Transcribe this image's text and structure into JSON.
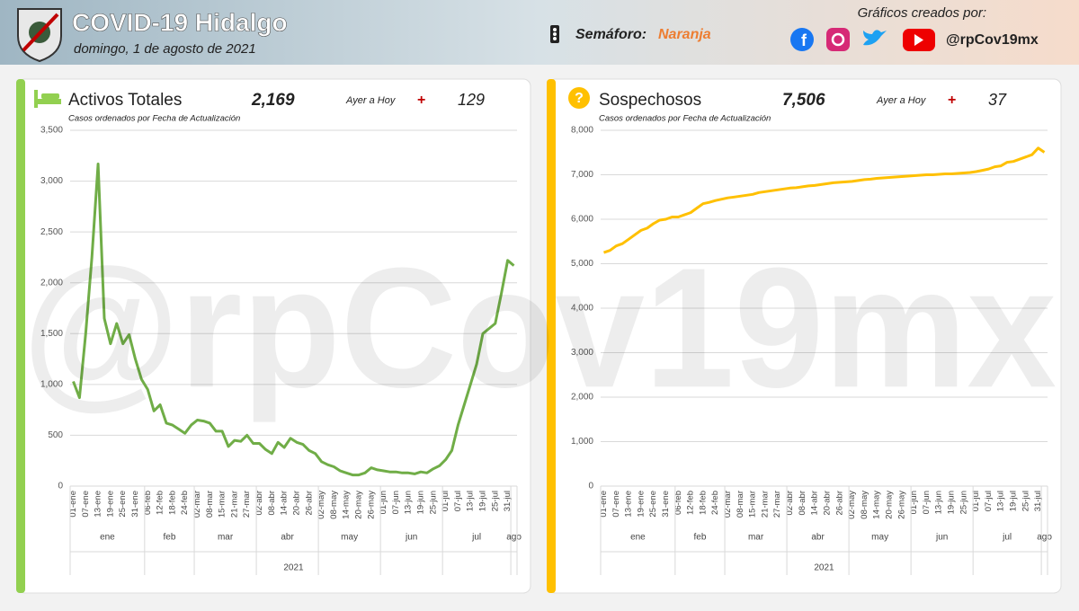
{
  "header": {
    "title": "COVID-19 Hidalgo",
    "date": "domingo, 1 de agosto de 2021",
    "semaforo_label": "Semáforo:",
    "semaforo": "Naranja",
    "credits": "Gráficos creados por:",
    "handle": "@rpCov19mx"
  },
  "watermark": "@rpCov19mx",
  "chart_data": [
    {
      "type": "line",
      "title": "Activos Totales",
      "subtitle": "Casos ordenados por Fecha de Actualización",
      "total": {
        "value": 2169,
        "label": "2,169"
      },
      "change_label": "Ayer a Hoy",
      "change_sign": "+",
      "change": 129,
      "color": "#70ad47",
      "accent": "#92d050",
      "grid": true,
      "categories": [
        "01-ene",
        null,
        "07-ene",
        null,
        "13-ene",
        null,
        "19-ene",
        null,
        "25-ene",
        null,
        "31-ene",
        null,
        "06-feb",
        null,
        "12-feb",
        null,
        "18-feb",
        null,
        "24-feb",
        null,
        "02-mar",
        null,
        "08-mar",
        null,
        "15-mar",
        null,
        "21-mar",
        null,
        "27-mar",
        null,
        "02-abr",
        null,
        "08-abr",
        null,
        "14-abr",
        null,
        "20-abr",
        null,
        "26-abr",
        null,
        "02-may",
        null,
        "08-may",
        null,
        "14-may",
        null,
        "20-may",
        null,
        "26-may",
        null,
        "01-jun",
        null,
        "07-jun",
        null,
        "13-jun",
        null,
        "19-jun",
        null,
        "25-jun",
        null,
        "01-jul",
        null,
        "07-jul",
        null,
        "13-jul",
        null,
        "19-jul",
        null,
        "25-jul",
        null,
        "31-jul",
        null
      ],
      "values": [
        1030,
        870,
        1500,
        2250,
        3169,
        1650,
        1400,
        1600,
        1400,
        1490,
        1250,
        1050,
        950,
        740,
        800,
        620,
        600,
        560,
        520,
        600,
        650,
        640,
        620,
        540,
        540,
        390,
        450,
        440,
        500,
        420,
        420,
        360,
        320,
        430,
        380,
        470,
        430,
        410,
        350,
        320,
        240,
        210,
        190,
        150,
        130,
        110,
        110,
        130,
        180,
        160,
        150,
        140,
        140,
        130,
        130,
        120,
        140,
        130,
        170,
        200,
        260,
        350,
        600,
        800,
        1000,
        1200,
        1500,
        1550,
        1600,
        1900,
        2220,
        2169
      ],
      "groups": [
        "ene",
        "feb",
        "mar",
        "abr",
        "may",
        "jun",
        "jul",
        "ago"
      ],
      "group_title": "2021",
      "ylim": [
        0,
        3500
      ],
      "yticks": [
        0,
        500,
        {
          "value": 1000,
          "label": "1,000"
        },
        {
          "value": 1500,
          "label": "1,500"
        },
        {
          "value": 2000,
          "label": "2,000"
        },
        {
          "value": 2500,
          "label": "2,500"
        },
        {
          "value": 3000,
          "label": "3,000"
        },
        {
          "value": 3500,
          "label": "3,500"
        }
      ]
    },
    {
      "type": "line",
      "title": "Sospechosos",
      "subtitle": "Casos ordenados por Fecha de Actualización",
      "total": {
        "value": 7506,
        "label": "7,506"
      },
      "change_label": "Ayer a Hoy",
      "change_sign": "+",
      "change": 37,
      "color": "#ffc000",
      "accent": "#ffc000",
      "grid": true,
      "categories": [
        "01-ene",
        null,
        "07-ene",
        null,
        "13-ene",
        null,
        "19-ene",
        null,
        "25-ene",
        null,
        "31-ene",
        null,
        "06-feb",
        null,
        "12-feb",
        null,
        "18-feb",
        null,
        "24-feb",
        null,
        "02-mar",
        null,
        "08-mar",
        null,
        "15-mar",
        null,
        "21-mar",
        null,
        "27-mar",
        null,
        "02-abr",
        null,
        "08-abr",
        null,
        "14-abr",
        null,
        "20-abr",
        null,
        "26-abr",
        null,
        "02-may",
        null,
        "08-may",
        null,
        "14-may",
        null,
        "20-may",
        null,
        "26-may",
        null,
        "01-jun",
        null,
        "07-jun",
        null,
        "13-jun",
        null,
        "19-jun",
        null,
        "25-jun",
        null,
        "01-jul",
        null,
        "07-jul",
        null,
        "13-jul",
        null,
        "19-jul",
        null,
        "25-jul",
        null,
        "31-jul",
        null
      ],
      "values": [
        5250,
        5300,
        5400,
        5450,
        5550,
        5650,
        5750,
        5800,
        5900,
        5980,
        6000,
        6050,
        6050,
        6100,
        6150,
        6250,
        6350,
        6380,
        6420,
        6450,
        6480,
        6500,
        6520,
        6540,
        6560,
        6600,
        6620,
        6640,
        6660,
        6680,
        6700,
        6710,
        6730,
        6750,
        6760,
        6780,
        6800,
        6820,
        6830,
        6840,
        6850,
        6870,
        6890,
        6900,
        6920,
        6930,
        6940,
        6950,
        6960,
        6970,
        6980,
        6990,
        7000,
        7000,
        7010,
        7020,
        7020,
        7030,
        7040,
        7050,
        7070,
        7100,
        7130,
        7180,
        7200,
        7280,
        7300,
        7350,
        7400,
        7450,
        7600,
        7506
      ],
      "groups": [
        "ene",
        "feb",
        "mar",
        "abr",
        "may",
        "jun",
        "jul",
        "ago"
      ],
      "group_title": "2021",
      "ylim": [
        0,
        8000
      ],
      "yticks": [
        0,
        {
          "value": 1000,
          "label": "1,000"
        },
        {
          "value": 2000,
          "label": "2,000"
        },
        {
          "value": 3000,
          "label": "3,000"
        },
        {
          "value": 4000,
          "label": "4,000"
        },
        {
          "value": 5000,
          "label": "5,000"
        },
        {
          "value": 6000,
          "label": "6,000"
        },
        {
          "value": 7000,
          "label": "7,000"
        },
        {
          "value": 8000,
          "label": "8,000"
        }
      ]
    }
  ]
}
